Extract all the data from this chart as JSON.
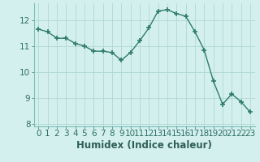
{
  "x": [
    0,
    1,
    2,
    3,
    4,
    5,
    6,
    7,
    8,
    9,
    10,
    11,
    12,
    13,
    14,
    15,
    16,
    17,
    18,
    19,
    20,
    21,
    22,
    23
  ],
  "y": [
    11.65,
    11.55,
    11.3,
    11.3,
    11.1,
    11.0,
    10.8,
    10.8,
    10.75,
    10.45,
    10.75,
    11.2,
    11.7,
    12.35,
    12.4,
    12.25,
    12.15,
    11.55,
    10.85,
    9.65,
    8.75,
    9.15,
    8.85,
    8.45
  ],
  "xlabel": "Humidex (Indice chaleur)",
  "bg_color": "#d4f0ee",
  "line_color": "#2e7b6e",
  "grid_color": "#b0d8d4",
  "ylim": [
    7.9,
    12.65
  ],
  "xlim": [
    -0.5,
    23.5
  ],
  "yticks": [
    8,
    9,
    10,
    11,
    12
  ],
  "xticks": [
    0,
    1,
    2,
    3,
    4,
    5,
    6,
    7,
    8,
    9,
    10,
    11,
    12,
    13,
    14,
    15,
    16,
    17,
    18,
    19,
    20,
    21,
    22,
    23
  ],
  "marker": "+",
  "marker_size": 4,
  "line_width": 1.0,
  "tick_fontsize": 7.5,
  "xlabel_fontsize": 8.5
}
